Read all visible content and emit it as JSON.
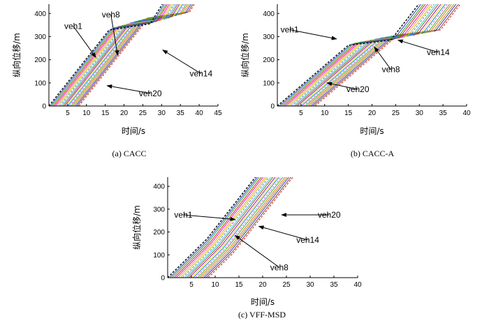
{
  "chart_data": [
    {
      "type": "line",
      "caption": "(a)  CACC",
      "xlabel": "时间/s",
      "ylabel": "纵向位移/m",
      "xlim": [
        0,
        45
      ],
      "ylim": [
        0,
        440
      ],
      "xticks": [
        "5",
        "10",
        "15",
        "20",
        "25",
        "30",
        "35",
        "40",
        "45"
      ],
      "yticks": [
        "0",
        "100",
        "200",
        "300",
        "400"
      ],
      "vehicles": 20,
      "start_time_step": 0.42,
      "speed_cruise": 26.5,
      "speed_fast": 20.5,
      "speed_slow": 2.5,
      "plateau_start": 16,
      "plateau_end": 27,
      "plateau_position": 215,
      "annotations": [
        {
          "label": "veh1",
          "text_at": [
            6.5,
            345
          ],
          "arrow_to": [
            12.5,
            210
          ]
        },
        {
          "label": "veh8",
          "text_at": [
            16.5,
            395
          ],
          "arrow_to": [
            18.3,
            220
          ]
        },
        {
          "label": "veh14",
          "text_at": [
            40.5,
            140
          ],
          "arrow_to": [
            30.3,
            242
          ]
        },
        {
          "label": "veh20",
          "text_at": [
            27,
            55
          ],
          "arrow_to": [
            15.5,
            88
          ]
        }
      ]
    },
    {
      "type": "line",
      "caption": "(b)  CACC-A",
      "xlabel": "时间/s",
      "ylabel": "纵向位移/m",
      "xlim": [
        0,
        40
      ],
      "ylim": [
        0,
        440
      ],
      "xticks": [
        "5",
        "10",
        "15",
        "20",
        "25",
        "30",
        "35",
        "40"
      ],
      "yticks": [
        "0",
        "100",
        "200",
        "300",
        "400"
      ],
      "vehicles": 20,
      "start_time_step": 0.42,
      "speed_cruise": 26.5,
      "speed_fast": 17.5,
      "speed_slow": 2.5,
      "plateau_start": 15,
      "plateau_end": 24,
      "plateau_position": 225,
      "annotations": [
        {
          "label": "veh1",
          "text_at": [
            2.6,
            330
          ],
          "arrow_to": [
            12.5,
            290
          ]
        },
        {
          "label": "veh8",
          "text_at": [
            24,
            158
          ],
          "arrow_to": [
            20.5,
            255
          ]
        },
        {
          "label": "veh14",
          "text_at": [
            34,
            232
          ],
          "arrow_to": [
            25.5,
            285
          ]
        },
        {
          "label": "veh20",
          "text_at": [
            17,
            72
          ],
          "arrow_to": [
            10.5,
            100
          ]
        }
      ]
    },
    {
      "type": "line",
      "caption": "(c)  VFF-MSD",
      "xlabel": "时间/s",
      "ylabel": "纵向位移/m",
      "xlim": [
        0,
        40
      ],
      "ylim": [
        0,
        440
      ],
      "xticks": [
        "5",
        "10",
        "15",
        "20",
        "25",
        "30",
        "35",
        "40"
      ],
      "yticks": [
        "0",
        "100",
        "200",
        "300",
        "400"
      ],
      "vehicles": 20,
      "start_time_step": 0.45,
      "speed_cruise": 26.5,
      "speed_fast": 20.5,
      "speed_slow": 20.5,
      "plateau_start": 99,
      "plateau_end": 99,
      "plateau_position": 0,
      "annotations": [
        {
          "label": "veh1",
          "text_at": [
            3.3,
            275
          ],
          "arrow_to": [
            14.2,
            255
          ]
        },
        {
          "label": "veh8",
          "text_at": [
            23.5,
            45
          ],
          "arrow_to": [
            14.2,
            185
          ]
        },
        {
          "label": "veh14",
          "text_at": [
            29.5,
            165
          ],
          "arrow_to": [
            19.2,
            225
          ]
        },
        {
          "label": "veh20",
          "text_at": [
            34,
            275
          ],
          "arrow_to": [
            24,
            275
          ]
        }
      ]
    }
  ],
  "colors": [
    "#1a1a1a",
    "#1f3fd0",
    "#19a619",
    "#e02020",
    "#d21bd2",
    "#ff9a1a",
    "#b4cc18",
    "#6b6bff",
    "#2ec9b8",
    "#a0522d",
    "#7d1fae",
    "#ffd21a",
    "#1a7fe0",
    "#e05ac0",
    "#36b336",
    "#ff6a1a",
    "#9a9a1a",
    "#4a2ad0",
    "#7a4a22",
    "#d81a1a"
  ]
}
